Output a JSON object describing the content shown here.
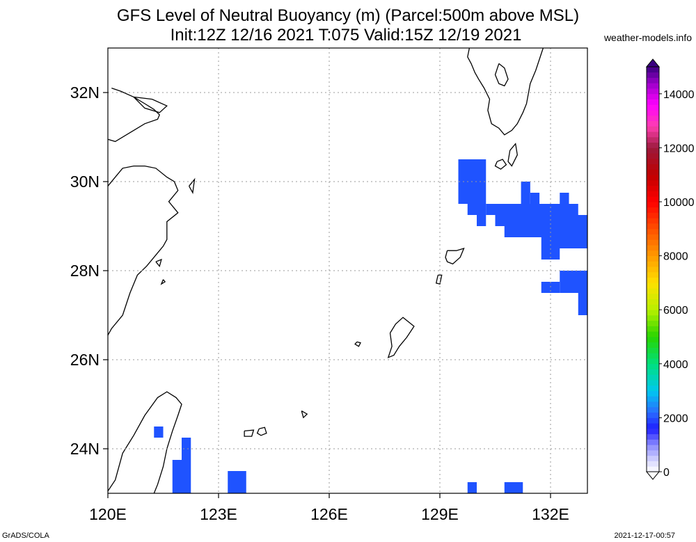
{
  "title": {
    "line1": "GFS Level of Neutral Buoyancy (m) (Parcel:500m above MSL)",
    "line2": "Init:12Z 12/16 2021 T:075 Valid:15Z 12/19 2021"
  },
  "credit": "weather-models.info",
  "footer": {
    "left": "GrADS/COLA",
    "right": "2021-12-17-00:57"
  },
  "map": {
    "lon_range": [
      120,
      133
    ],
    "lat_range": [
      23,
      33
    ],
    "lon_ticks": [
      {
        "value": 120,
        "label": "120E"
      },
      {
        "value": 123,
        "label": "123E"
      },
      {
        "value": 126,
        "label": "126E"
      },
      {
        "value": 129,
        "label": "129E"
      },
      {
        "value": 132,
        "label": "132E"
      }
    ],
    "lat_ticks": [
      {
        "value": 24,
        "label": "24N"
      },
      {
        "value": 26,
        "label": "26N"
      },
      {
        "value": 28,
        "label": "28N"
      },
      {
        "value": 30,
        "label": "30N"
      },
      {
        "value": 32,
        "label": "32N"
      }
    ],
    "grid": true,
    "field_color": "#1f53ff",
    "coast_color": "#000000",
    "cells": [
      {
        "lon0": 129.5,
        "lon1": 130.25,
        "lat0": 29.5,
        "lat1": 30.5
      },
      {
        "lon0": 129.75,
        "lon1": 130.25,
        "lat0": 29.25,
        "lat1": 29.5
      },
      {
        "lon0": 130.0,
        "lon1": 130.25,
        "lat0": 29.0,
        "lat1": 29.25
      },
      {
        "lon0": 130.25,
        "lon1": 132.75,
        "lat0": 29.25,
        "lat1": 29.5
      },
      {
        "lon0": 131.2,
        "lon1": 131.45,
        "lat0": 29.5,
        "lat1": 30.0
      },
      {
        "lon0": 131.45,
        "lon1": 131.7,
        "lat0": 29.5,
        "lat1": 29.75
      },
      {
        "lon0": 132.25,
        "lon1": 132.5,
        "lat0": 29.5,
        "lat1": 29.75
      },
      {
        "lon0": 130.5,
        "lon1": 133.0,
        "lat0": 29.0,
        "lat1": 29.25
      },
      {
        "lon0": 130.75,
        "lon1": 133.0,
        "lat0": 28.75,
        "lat1": 29.0
      },
      {
        "lon0": 131.75,
        "lon1": 133.0,
        "lat0": 28.5,
        "lat1": 28.75
      },
      {
        "lon0": 131.75,
        "lon1": 132.25,
        "lat0": 28.25,
        "lat1": 28.5
      },
      {
        "lon0": 131.75,
        "lon1": 132.25,
        "lat0": 27.5,
        "lat1": 27.75
      },
      {
        "lon0": 132.25,
        "lon1": 133.0,
        "lat0": 27.5,
        "lat1": 28.0
      },
      {
        "lon0": 132.75,
        "lon1": 133.0,
        "lat0": 27.0,
        "lat1": 27.5
      },
      {
        "lon0": 121.25,
        "lon1": 121.5,
        "lat0": 24.25,
        "lat1": 24.5
      },
      {
        "lon0": 121.75,
        "lon1": 122.0,
        "lat0": 23.0,
        "lat1": 23.75
      },
      {
        "lon0": 122.0,
        "lon1": 122.25,
        "lat0": 23.0,
        "lat1": 24.25
      },
      {
        "lon0": 123.25,
        "lon1": 123.75,
        "lat0": 23.0,
        "lat1": 23.5
      },
      {
        "lon0": 129.75,
        "lon1": 130.0,
        "lat0": 23.0,
        "lat1": 23.25
      },
      {
        "lon0": 130.75,
        "lon1": 131.25,
        "lat0": 23.0,
        "lat1": 23.25
      }
    ],
    "coastlines": [
      [
        [
          120.1,
          32.1
        ],
        [
          120.35,
          32.03
        ],
        [
          120.7,
          31.9
        ],
        [
          121.0,
          31.75
        ],
        [
          121.25,
          31.62
        ],
        [
          121.4,
          31.5
        ],
        [
          121.35,
          31.4
        ],
        [
          121.0,
          31.3
        ],
        [
          120.7,
          31.15
        ],
        [
          120.2,
          30.9
        ],
        [
          120.0,
          30.95
        ]
      ],
      [
        [
          120.0,
          29.9
        ],
        [
          120.2,
          30.1
        ],
        [
          120.4,
          30.3
        ],
        [
          120.7,
          30.35
        ],
        [
          121.0,
          30.35
        ],
        [
          121.3,
          30.3
        ],
        [
          121.6,
          30.1
        ],
        [
          121.8,
          30.0
        ],
        [
          121.9,
          29.8
        ],
        [
          121.65,
          29.55
        ],
        [
          121.9,
          29.3
        ],
        [
          121.6,
          29.1
        ],
        [
          121.6,
          28.7
        ],
        [
          121.5,
          28.55
        ],
        [
          121.3,
          28.35
        ],
        [
          121.05,
          28.1
        ],
        [
          120.8,
          27.9
        ],
        [
          120.6,
          27.5
        ],
        [
          120.4,
          27.0
        ],
        [
          120.1,
          26.7
        ],
        [
          120.0,
          26.55
        ]
      ],
      [
        [
          120.0,
          23.05
        ],
        [
          120.2,
          23.3
        ],
        [
          120.4,
          23.9
        ],
        [
          120.7,
          24.3
        ],
        [
          121.0,
          24.75
        ],
        [
          121.35,
          25.15
        ],
        [
          121.6,
          25.28
        ],
        [
          121.85,
          25.15
        ],
        [
          122.0,
          25.0
        ],
        [
          121.9,
          24.75
        ],
        [
          121.75,
          24.4
        ],
        [
          121.6,
          24.0
        ],
        [
          121.5,
          23.6
        ],
        [
          121.35,
          23.2
        ],
        [
          121.25,
          23.0
        ]
      ],
      [
        [
          129.8,
          33.0
        ],
        [
          129.75,
          32.8
        ],
        [
          129.85,
          32.65
        ],
        [
          129.95,
          32.45
        ],
        [
          130.05,
          32.3
        ],
        [
          130.2,
          32.1
        ],
        [
          130.35,
          31.85
        ],
        [
          130.3,
          31.6
        ],
        [
          130.4,
          31.3
        ],
        [
          130.6,
          31.2
        ],
        [
          130.75,
          31.05
        ],
        [
          130.95,
          31.15
        ],
        [
          131.1,
          31.3
        ],
        [
          131.25,
          31.55
        ],
        [
          131.35,
          31.75
        ],
        [
          131.45,
          32.2
        ],
        [
          131.6,
          32.5
        ],
        [
          131.7,
          32.75
        ],
        [
          131.8,
          33.0
        ]
      ],
      [
        [
          130.6,
          32.65
        ],
        [
          130.75,
          32.55
        ],
        [
          130.85,
          32.3
        ],
        [
          130.75,
          32.15
        ],
        [
          130.6,
          32.2
        ],
        [
          130.5,
          32.4
        ],
        [
          130.6,
          32.65
        ]
      ],
      [
        [
          130.55,
          30.45
        ],
        [
          130.7,
          30.5
        ],
        [
          130.8,
          30.38
        ],
        [
          130.65,
          30.28
        ],
        [
          130.5,
          30.35
        ],
        [
          130.55,
          30.45
        ]
      ],
      [
        [
          130.9,
          30.7
        ],
        [
          131.05,
          30.85
        ],
        [
          131.1,
          30.6
        ],
        [
          130.95,
          30.35
        ],
        [
          130.85,
          30.45
        ],
        [
          130.9,
          30.7
        ]
      ],
      [
        [
          129.2,
          28.45
        ],
        [
          129.45,
          28.45
        ],
        [
          129.65,
          28.5
        ],
        [
          129.55,
          28.3
        ],
        [
          129.35,
          28.15
        ],
        [
          129.2,
          28.2
        ],
        [
          129.15,
          28.3
        ],
        [
          129.2,
          28.45
        ]
      ],
      [
        [
          128.95,
          27.9
        ],
        [
          129.05,
          27.9
        ],
        [
          129.0,
          27.7
        ],
        [
          128.9,
          27.72
        ],
        [
          128.95,
          27.9
        ]
      ],
      [
        [
          127.65,
          26.6
        ],
        [
          127.8,
          26.8
        ],
        [
          128.0,
          26.95
        ],
        [
          128.3,
          26.75
        ],
        [
          128.1,
          26.5
        ],
        [
          127.9,
          26.3
        ],
        [
          127.75,
          26.1
        ],
        [
          127.6,
          26.05
        ],
        [
          127.7,
          26.3
        ],
        [
          127.65,
          26.6
        ]
      ],
      [
        [
          126.75,
          26.4
        ],
        [
          126.85,
          26.38
        ],
        [
          126.8,
          26.3
        ],
        [
          126.7,
          26.35
        ],
        [
          126.75,
          26.4
        ]
      ],
      [
        [
          124.1,
          24.45
        ],
        [
          124.25,
          24.48
        ],
        [
          124.3,
          24.35
        ],
        [
          124.15,
          24.3
        ],
        [
          124.05,
          24.35
        ],
        [
          124.1,
          24.45
        ]
      ],
      [
        [
          123.7,
          24.4
        ],
        [
          123.95,
          24.42
        ],
        [
          123.9,
          24.28
        ],
        [
          123.7,
          24.28
        ],
        [
          123.7,
          24.4
        ]
      ],
      [
        [
          125.25,
          24.85
        ],
        [
          125.4,
          24.78
        ],
        [
          125.3,
          24.7
        ],
        [
          125.25,
          24.85
        ]
      ],
      [
        [
          122.2,
          29.9
        ],
        [
          122.35,
          30.05
        ],
        [
          122.3,
          29.75
        ],
        [
          122.2,
          29.9
        ]
      ],
      [
        [
          120.7,
          31.9
        ],
        [
          121.2,
          31.85
        ],
        [
          121.6,
          31.7
        ],
        [
          121.4,
          31.55
        ],
        [
          121.0,
          31.65
        ],
        [
          120.7,
          31.9
        ]
      ],
      [
        [
          121.3,
          28.2
        ],
        [
          121.45,
          28.25
        ],
        [
          121.4,
          28.1
        ],
        [
          121.3,
          28.2
        ]
      ],
      [
        [
          121.5,
          27.8
        ],
        [
          121.55,
          27.75
        ],
        [
          121.45,
          27.7
        ],
        [
          121.5,
          27.8
        ]
      ]
    ]
  },
  "colorbar": {
    "range": [
      0,
      15000
    ],
    "ticks": [
      {
        "value": 0,
        "label": "0"
      },
      {
        "value": 2000,
        "label": "2000"
      },
      {
        "value": 4000,
        "label": "4000"
      },
      {
        "value": 6000,
        "label": "6000"
      },
      {
        "value": 8000,
        "label": "8000"
      },
      {
        "value": 10000,
        "label": "10000"
      },
      {
        "value": 12000,
        "label": "12000"
      },
      {
        "value": 14000,
        "label": "14000"
      }
    ],
    "stops": [
      {
        "value": 0,
        "color": "#ffffff"
      },
      {
        "value": 400,
        "color": "#d8d8ff"
      },
      {
        "value": 1000,
        "color": "#8a8aff"
      },
      {
        "value": 1600,
        "color": "#1e1eff"
      },
      {
        "value": 2200,
        "color": "#2a6cff"
      },
      {
        "value": 3000,
        "color": "#00c8f0"
      },
      {
        "value": 4000,
        "color": "#00e07c"
      },
      {
        "value": 5000,
        "color": "#28d400"
      },
      {
        "value": 6000,
        "color": "#b8f000"
      },
      {
        "value": 7000,
        "color": "#ffe000"
      },
      {
        "value": 8000,
        "color": "#ff9a00"
      },
      {
        "value": 9000,
        "color": "#ff5000"
      },
      {
        "value": 10000,
        "color": "#ff0000"
      },
      {
        "value": 11000,
        "color": "#c00000"
      },
      {
        "value": 12000,
        "color": "#9b1a3c"
      },
      {
        "value": 12800,
        "color": "#ff3fb0"
      },
      {
        "value": 13600,
        "color": "#ff00ff"
      },
      {
        "value": 14400,
        "color": "#9a00c8"
      },
      {
        "value": 15000,
        "color": "#3a0080"
      }
    ]
  }
}
